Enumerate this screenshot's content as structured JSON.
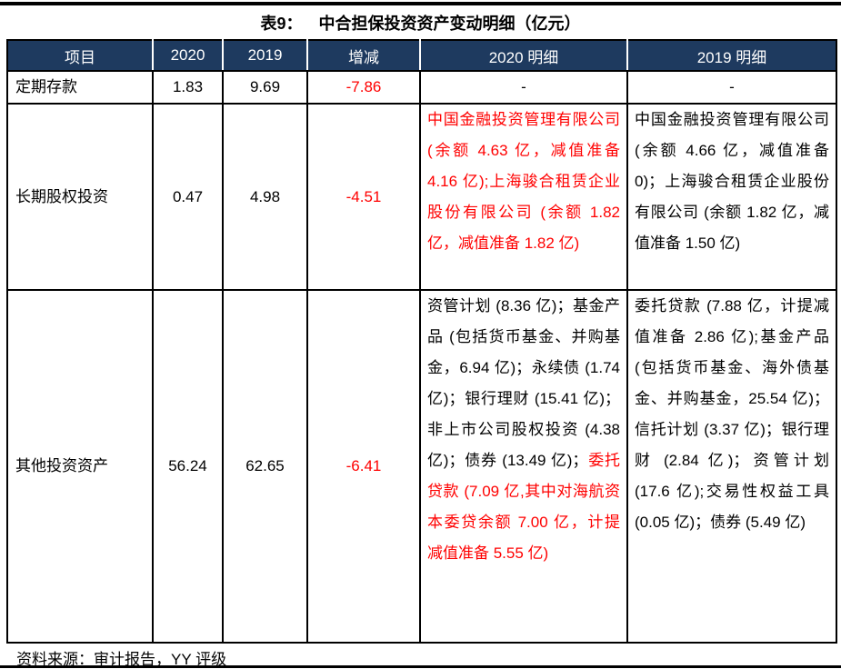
{
  "title": {
    "prefix": "表9：",
    "text": "中合担保投资资产变动明细（亿元）"
  },
  "colors": {
    "header_bg": "#1E3A5F",
    "header_text": "#FFFFFF",
    "negative": "#FF0000",
    "border": "#000000"
  },
  "table": {
    "headers": [
      "项目",
      "2020",
      "2019",
      "增减",
      "2020 明细",
      "2019 明细"
    ],
    "rows": [
      {
        "item": "定期存款",
        "y2020": "1.83",
        "y2019": "9.69",
        "change": "-7.86",
        "detail_2020": "-",
        "detail_2019": "-"
      },
      {
        "item": "长期股权投资",
        "y2020": "0.47",
        "y2019": "4.98",
        "change": "-4.51",
        "detail_2020_red": "中国金融投资管理有限公司 (余额 4.63 亿，减值准备 4.16 亿);上海骏合租赁企业股份有限公司 (余额 1.82 亿，减值准备 1.82 亿)",
        "detail_2019": "中国金融投资管理有限公司 (余额 4.66 亿，减值准备 0)；上海骏合租赁企业股份有限公司 (余额 1.82 亿，减值准备 1.50 亿)"
      },
      {
        "item": "其他投资资产",
        "y2020": "56.24",
        "y2019": "62.65",
        "change": "-6.41",
        "detail_2020_black": "资管计划 (8.36 亿)；基金产品 (包括货币基金、并购基金，6.94 亿)；永续债 (1.74 亿)；银行理财 (15.41 亿)；非上市公司股权投资 (4.38 亿)；债券 (13.49 亿)；",
        "detail_2020_red": "委托贷款 (7.09 亿,其中对海航资本委贷余额 7.00 亿，计提减值准备 5.55 亿)",
        "detail_2019": "委托贷款 (7.88 亿，计提减值准备 2.86 亿);基金产品 (包括货币基金、海外债基金、并购基金，25.54 亿)；信托计划 (3.37 亿)；银行理财 (2.84 亿)；资管计划 (17.6 亿);交易性权益工具 (0.05 亿)；债券 (5.49 亿)"
      }
    ]
  },
  "footer": {
    "source": "资料来源：审计报告，YY 评级"
  }
}
